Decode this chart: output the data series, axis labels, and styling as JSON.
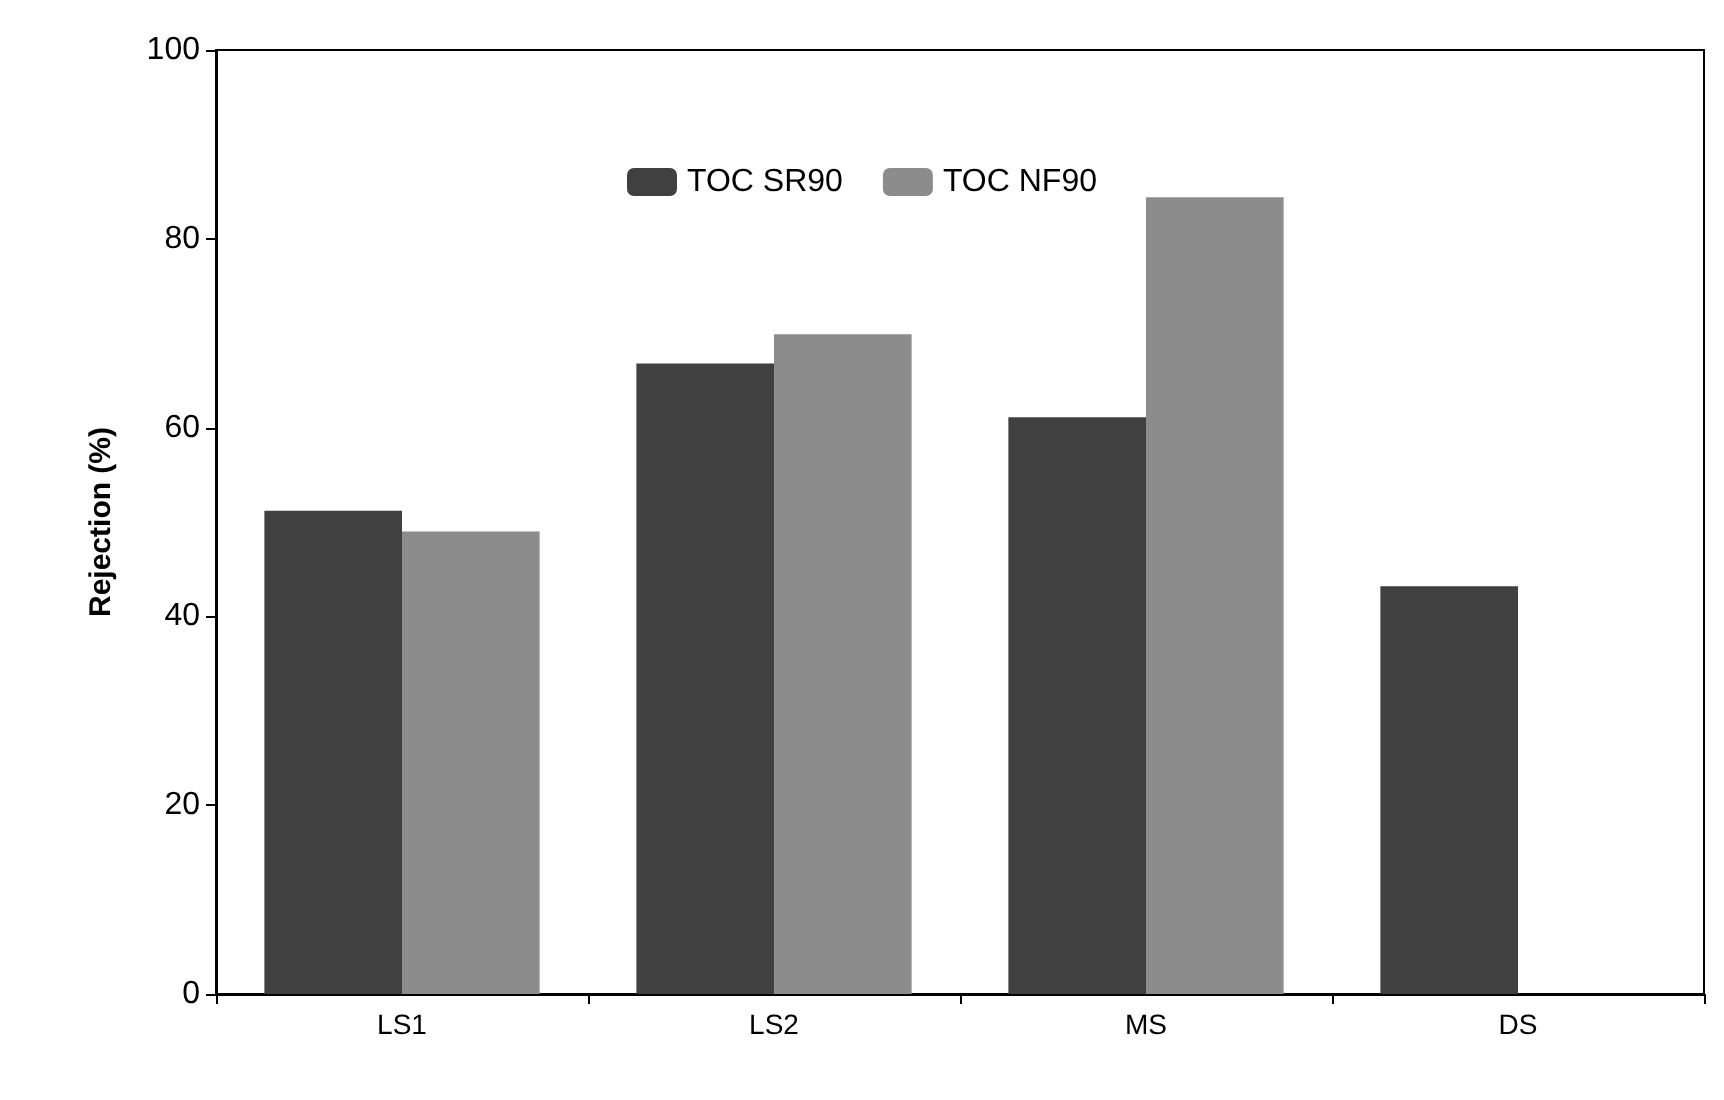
{
  "chart_data": {
    "type": "bar",
    "ylabel": "Rejection (%)",
    "categories": [
      "LS1",
      "LS2",
      "MS",
      "DS"
    ],
    "series": [
      {
        "name": "TOC SR90",
        "color": "#404040",
        "values": [
          51.2,
          66.8,
          61.1,
          43.2
        ]
      },
      {
        "name": "TOC NF90",
        "color": "#8c8c8c",
        "values": [
          49,
          69.9,
          84.4,
          null
        ]
      }
    ],
    "ylim": [
      0,
      100
    ],
    "yticks": [
      0,
      20,
      40,
      60,
      80,
      100
    ],
    "grid": false,
    "legend": "top"
  }
}
